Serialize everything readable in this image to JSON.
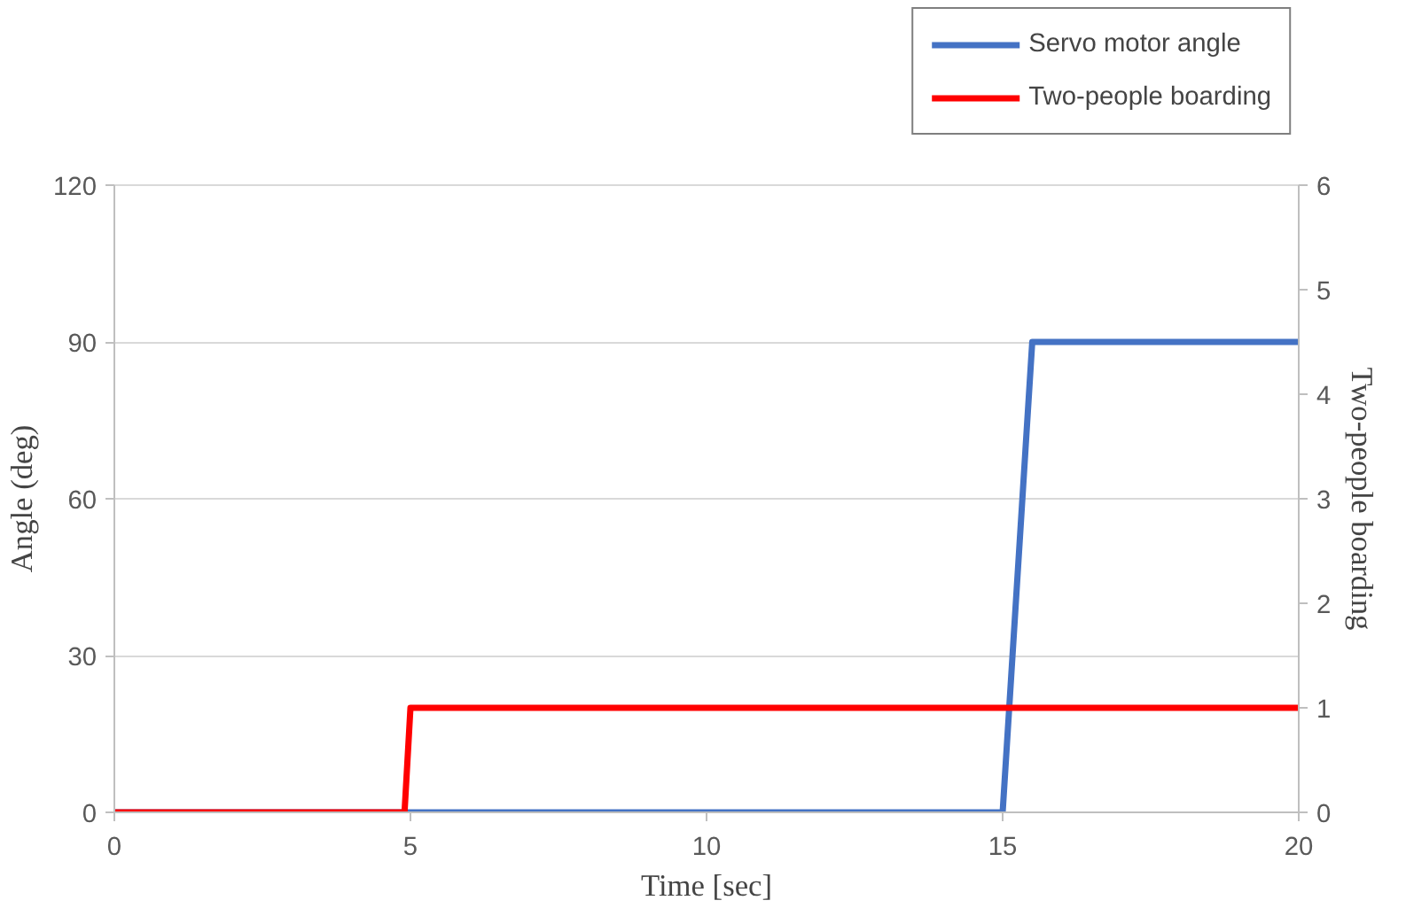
{
  "chart_data": {
    "type": "line",
    "xlabel": "Time [sec]",
    "ylabel": "Angle (deg)",
    "y2label": "Two-people boarding",
    "xlim": [
      0,
      20
    ],
    "xticks": [
      0,
      5,
      10,
      15,
      20
    ],
    "ylim": [
      0,
      120
    ],
    "yticks": [
      0,
      30,
      60,
      90,
      120
    ],
    "y2lim": [
      0,
      6
    ],
    "y2ticks": [
      0,
      1,
      2,
      3,
      4,
      5,
      6
    ],
    "grid": "y",
    "legend": "top right",
    "line_style": "solid",
    "marker": "none",
    "series": [
      {
        "name": "Servo motor angle",
        "color": "#4472c4",
        "x": [
          0,
          15,
          15.5,
          20
        ],
        "values": [
          0,
          0,
          90,
          90
        ]
      },
      {
        "name": "Two-people boarding",
        "color": "#ff0000",
        "axis": "y2",
        "x": [
          0,
          4.9,
          5,
          20
        ],
        "values": [
          0,
          0,
          1,
          1
        ]
      }
    ]
  }
}
